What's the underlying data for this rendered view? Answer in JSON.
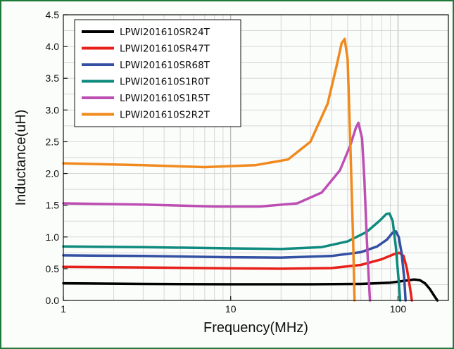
{
  "chart_data": {
    "type": "line",
    "xlabel": "Frequency(MHz)",
    "ylabel": "Inductance(uH)",
    "xscale": "log",
    "xlim": [
      1,
      200
    ],
    "ylim": [
      0,
      4.5
    ],
    "grid": true,
    "legend_position": "top-left",
    "x_ticks": [
      {
        "value": 1,
        "label": "1"
      },
      {
        "value": 10,
        "label": "10"
      },
      {
        "value": 100,
        "label": "100"
      }
    ],
    "y_ticks": [
      {
        "value": 0.0,
        "label": "0.0"
      },
      {
        "value": 0.5,
        "label": "0.5"
      },
      {
        "value": 1.0,
        "label": "1.0"
      },
      {
        "value": 1.5,
        "label": "1.5"
      },
      {
        "value": 2.0,
        "label": "2.0"
      },
      {
        "value": 2.5,
        "label": "2.5"
      },
      {
        "value": 3.0,
        "label": "3.0"
      },
      {
        "value": 3.5,
        "label": "3.5"
      },
      {
        "value": 4.0,
        "label": "4.0"
      },
      {
        "value": 4.5,
        "label": "4.5"
      }
    ],
    "series": [
      {
        "name": "LPWI201610SR24T",
        "color": "#000000",
        "points": [
          [
            1,
            0.27
          ],
          [
            3,
            0.26
          ],
          [
            10,
            0.255
          ],
          [
            30,
            0.255
          ],
          [
            60,
            0.26
          ],
          [
            90,
            0.28
          ],
          [
            110,
            0.31
          ],
          [
            125,
            0.33
          ],
          [
            135,
            0.32
          ],
          [
            145,
            0.27
          ],
          [
            155,
            0.18
          ],
          [
            165,
            0.07
          ],
          [
            172,
            0.0
          ]
        ]
      },
      {
        "name": "LPWI201610SR47T",
        "color": "#e8201a",
        "points": [
          [
            1,
            0.53
          ],
          [
            3,
            0.52
          ],
          [
            10,
            0.505
          ],
          [
            20,
            0.5
          ],
          [
            40,
            0.51
          ],
          [
            60,
            0.56
          ],
          [
            80,
            0.65
          ],
          [
            95,
            0.73
          ],
          [
            102,
            0.75
          ],
          [
            108,
            0.7
          ],
          [
            113,
            0.5
          ],
          [
            118,
            0.2
          ],
          [
            121,
            0.0
          ]
        ]
      },
      {
        "name": "LPWI201610SR68T",
        "color": "#3350a3",
        "points": [
          [
            1,
            0.71
          ],
          [
            3,
            0.7
          ],
          [
            10,
            0.68
          ],
          [
            20,
            0.675
          ],
          [
            40,
            0.7
          ],
          [
            60,
            0.76
          ],
          [
            75,
            0.85
          ],
          [
            86,
            0.96
          ],
          [
            93,
            1.07
          ],
          [
            97,
            1.09
          ],
          [
            101,
            1.0
          ],
          [
            105,
            0.75
          ],
          [
            109,
            0.35
          ],
          [
            111,
            0.0
          ]
        ]
      },
      {
        "name": "LPWI201610S1R0T",
        "color": "#0f8a7e",
        "points": [
          [
            1,
            0.85
          ],
          [
            3,
            0.84
          ],
          [
            10,
            0.82
          ],
          [
            20,
            0.81
          ],
          [
            35,
            0.84
          ],
          [
            50,
            0.93
          ],
          [
            65,
            1.08
          ],
          [
            78,
            1.26
          ],
          [
            85,
            1.36
          ],
          [
            89,
            1.37
          ],
          [
            93,
            1.25
          ],
          [
            97,
            0.85
          ],
          [
            101,
            0.3
          ],
          [
            103,
            0.0
          ]
        ]
      },
      {
        "name": "LPWI201610S1R5T",
        "color": "#bd4fb3",
        "points": [
          [
            1,
            1.53
          ],
          [
            3,
            1.51
          ],
          [
            8,
            1.48
          ],
          [
            15,
            1.48
          ],
          [
            25,
            1.53
          ],
          [
            35,
            1.7
          ],
          [
            45,
            2.05
          ],
          [
            52,
            2.45
          ],
          [
            56,
            2.72
          ],
          [
            58,
            2.8
          ],
          [
            61,
            2.55
          ],
          [
            63,
            1.9
          ],
          [
            65,
            1.0
          ],
          [
            67,
            0.3
          ],
          [
            68,
            0.0
          ]
        ]
      },
      {
        "name": "LPWI201610S2R2T",
        "color": "#f08a1e",
        "points": [
          [
            1,
            2.16
          ],
          [
            3,
            2.13
          ],
          [
            7,
            2.1
          ],
          [
            14,
            2.13
          ],
          [
            22,
            2.22
          ],
          [
            30,
            2.5
          ],
          [
            38,
            3.1
          ],
          [
            43,
            3.7
          ],
          [
            46,
            4.05
          ],
          [
            48,
            4.12
          ],
          [
            50,
            3.8
          ],
          [
            52,
            2.4
          ],
          [
            54,
            0.9
          ],
          [
            55,
            0.0
          ]
        ]
      }
    ]
  }
}
